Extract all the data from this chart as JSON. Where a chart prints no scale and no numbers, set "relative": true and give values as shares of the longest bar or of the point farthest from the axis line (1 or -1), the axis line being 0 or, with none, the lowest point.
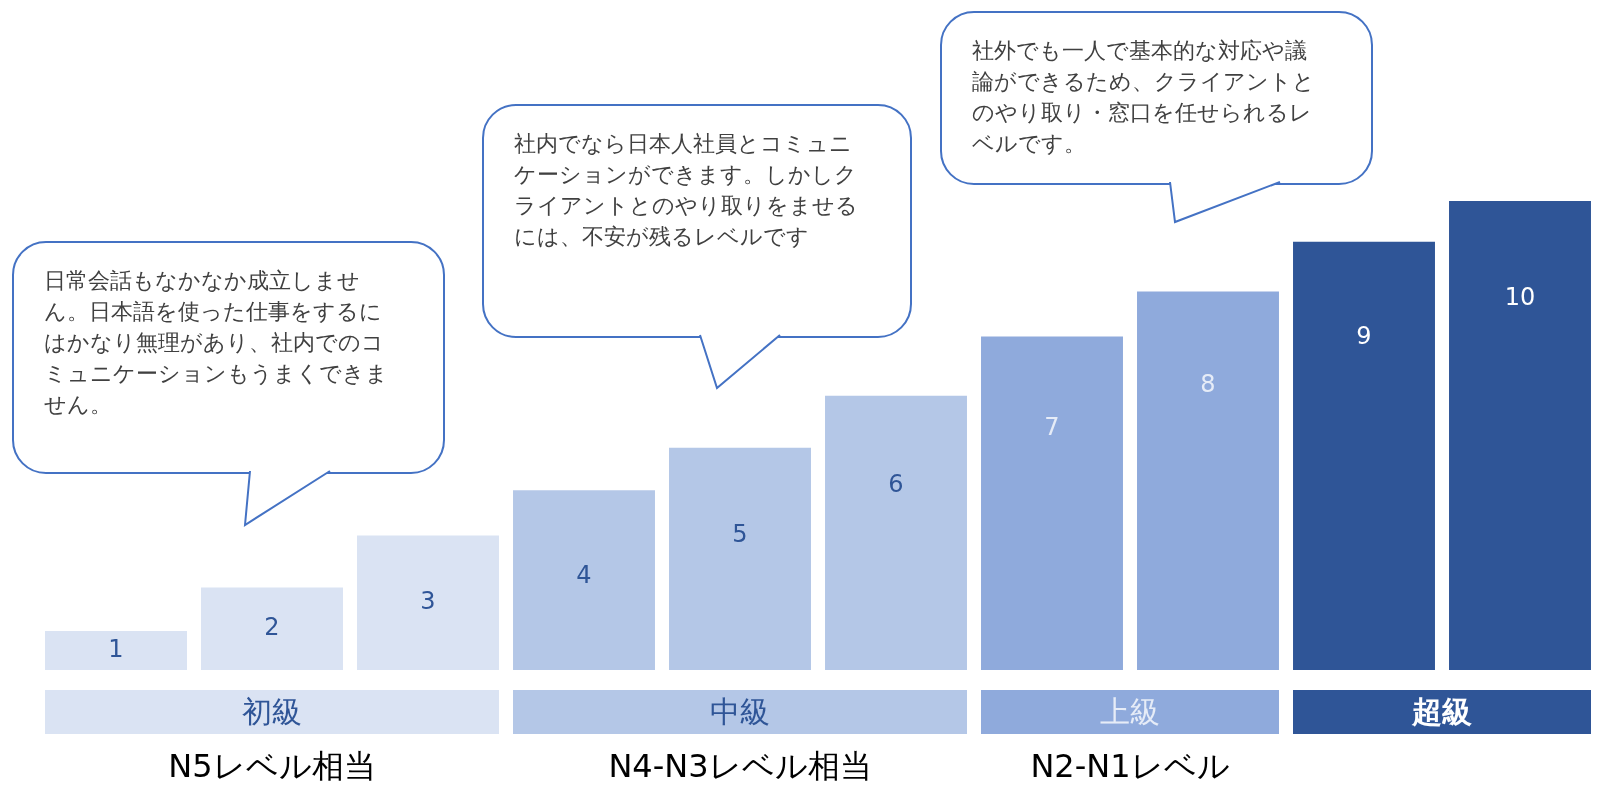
{
  "chart_data": {
    "type": "bar",
    "relative": true,
    "categories": [
      "1",
      "2",
      "3",
      "4",
      "5",
      "6",
      "7",
      "8",
      "9",
      "10"
    ],
    "values": [
      0.083,
      0.176,
      0.287,
      0.383,
      0.474,
      0.585,
      0.711,
      0.807,
      0.913,
      1
    ],
    "colors": [
      "#dae3f3",
      "#dae3f3",
      "#dae3f3",
      "#b4c7e7",
      "#b4c7e7",
      "#b4c7e7",
      "#8faadc",
      "#8faadc",
      "#2f5597",
      "#2f5597"
    ],
    "annotations": [
      "初級",
      "中級",
      "上級",
      "超級",
      "N5レベル相当",
      "N4-N3レベル相当",
      "N2-N1レベル",
      "日常会話もなかなか成立しません。日本語を使った仕事をするにはかなり無理があり、社内でのコミュニケーションもうまくできません。",
      "社内でなら日本人社員とコミュニケーションができます。しかしクライアントとのやり取りをませるには、不安が残るレベルです",
      "社外でも一人で基本的な対応や議論ができるため、クライアントとのやり取り・窓口を任せられるレベルです。"
    ],
    "legend": false,
    "tick_labels": false
  }
}
